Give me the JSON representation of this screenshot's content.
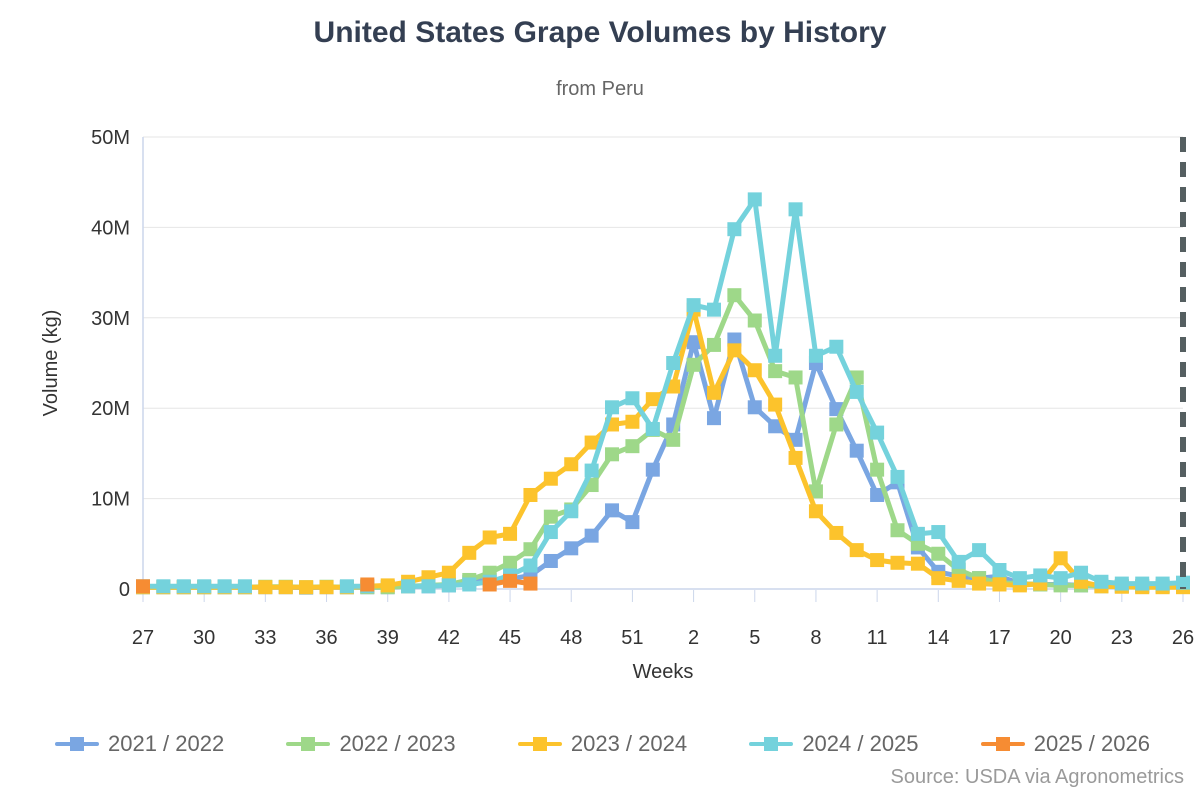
{
  "header": {
    "title": "United States Grape Volumes by History",
    "subtitle": "from Peru"
  },
  "footer": {
    "source": "Source: USDA via Agronometrics"
  },
  "chart_data": {
    "type": "line",
    "title": "United States Grape Volumes by History",
    "subtitle": "from Peru",
    "values_unit": "million kg",
    "grid": "horizontal",
    "legend_position": "bottom",
    "marker_shape": "square",
    "dashed_end_line_week": 26,
    "x": {
      "label": "Weeks",
      "tick_every": 3,
      "weeks": [
        27,
        28,
        29,
        30,
        31,
        32,
        33,
        34,
        35,
        36,
        37,
        38,
        39,
        40,
        41,
        42,
        43,
        44,
        45,
        46,
        47,
        48,
        49,
        50,
        51,
        52,
        1,
        2,
        3,
        4,
        5,
        6,
        7,
        8,
        9,
        10,
        11,
        12,
        13,
        14,
        15,
        16,
        17,
        18,
        19,
        20,
        21,
        22,
        23,
        24,
        25,
        26
      ],
      "tick_labels_visible": [
        "27",
        "30",
        "33",
        "36",
        "39",
        "42",
        "45",
        "48",
        "51",
        "2",
        "5",
        "8",
        "11",
        "14",
        "17",
        "20",
        "23",
        "26"
      ]
    },
    "y": {
      "label": "Volume (kg)",
      "range": [
        0,
        50
      ],
      "ticks": [
        0,
        10,
        20,
        30,
        40,
        50
      ],
      "tick_labels": [
        "0",
        "10M",
        "20M",
        "30M",
        "40M",
        "50M"
      ]
    },
    "series": [
      {
        "name": "2021 / 2022",
        "color": "#7aa6e2",
        "values": [
          0.2,
          0.2,
          0.2,
          0.2,
          0.2,
          0.2,
          0.2,
          0.2,
          0.15,
          0.2,
          0.2,
          0.2,
          0.2,
          0.3,
          0.3,
          0.4,
          0.8,
          1,
          1.1,
          1.5,
          3.1,
          4.5,
          5.9,
          8.7,
          7.4,
          13.2,
          18.2,
          27.3,
          18.9,
          27.6,
          20.1,
          18,
          16.5,
          25,
          19.9,
          15.3,
          10.4,
          11.8,
          4.6,
          1.9,
          1.4,
          1.2,
          1.4,
          0.6,
          0.5,
          0.5,
          0.4,
          0.4,
          0.3,
          0.3,
          0.3,
          0.3
        ]
      },
      {
        "name": "2022 / 2023",
        "color": "#9ed889",
        "values": [
          0.2,
          0.2,
          0.2,
          0.2,
          0.2,
          0.2,
          0.25,
          0.25,
          0.2,
          0.25,
          0.2,
          0.2,
          0.2,
          0.3,
          0.4,
          0.5,
          1,
          1.8,
          2.9,
          4.4,
          8,
          8.8,
          11.5,
          14.9,
          15.8,
          17.6,
          16.5,
          24.8,
          27,
          32.5,
          29.7,
          24.1,
          23.4,
          10.8,
          18.2,
          23.4,
          13.2,
          6.5,
          5,
          3.9,
          2.1,
          1.2,
          0.7,
          0.6,
          0.5,
          0.4,
          0.4,
          0.3,
          0.3,
          0.3,
          0.3,
          0.3
        ]
      },
      {
        "name": "2023 / 2024",
        "color": "#fcc32c",
        "values": [
          0.2,
          0.2,
          0.2,
          0.2,
          0.2,
          0.2,
          0.2,
          0.2,
          0.2,
          0.2,
          0.2,
          0.3,
          0.4,
          0.8,
          1.3,
          1.8,
          4,
          5.7,
          6.1,
          10.4,
          12.2,
          13.8,
          16.2,
          18.2,
          18.5,
          21,
          22.4,
          30.9,
          21.7,
          26.4,
          24.2,
          20.4,
          14.5,
          8.6,
          6.2,
          4.3,
          3.2,
          2.9,
          2.8,
          1.2,
          0.9,
          0.6,
          0.5,
          0.4,
          0.6,
          3.4,
          0.8,
          0.3,
          0.25,
          0.2,
          0.2,
          0.2
        ]
      },
      {
        "name": "2024 / 2025",
        "color": "#74d2dc",
        "values": [
          0.3,
          0.3,
          0.3,
          0.3,
          0.3,
          0.3,
          null,
          null,
          null,
          null,
          0.3,
          0.3,
          null,
          0.3,
          0.3,
          0.4,
          0.5,
          0.8,
          1.5,
          2.6,
          6.3,
          8.6,
          13.1,
          20.1,
          21.1,
          17.7,
          25,
          31.4,
          30.9,
          39.8,
          43.1,
          25.8,
          42,
          25.8,
          26.8,
          21.8,
          17.3,
          12.4,
          6.1,
          6.3,
          3,
          4.3,
          2.1,
          1.2,
          1.5,
          1.2,
          1.8,
          0.8,
          0.6,
          0.6,
          0.6,
          0.7
        ]
      },
      {
        "name": "2025 / 2026",
        "color": "#f68c33",
        "values": [
          0.3,
          null,
          null,
          null,
          null,
          null,
          null,
          null,
          null,
          null,
          null,
          0.5,
          null,
          null,
          null,
          null,
          null,
          0.5,
          0.9,
          0.6,
          null,
          null,
          null,
          null,
          null,
          null,
          null,
          null,
          null,
          null,
          null,
          null,
          null,
          null,
          null,
          null,
          null,
          null,
          null,
          null,
          null,
          null,
          null,
          null,
          null,
          null,
          null,
          null,
          null,
          null,
          null,
          null
        ]
      }
    ]
  }
}
